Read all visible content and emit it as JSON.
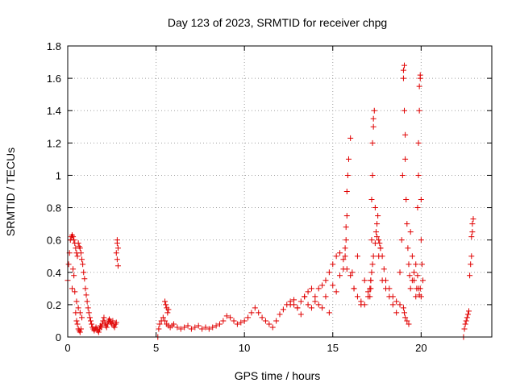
{
  "chart_data": {
    "type": "scatter",
    "title": "Day 123 of 2023, SRMTID for receiver chpg",
    "xlabel": "GPS time / hours",
    "ylabel": "SRMTID / TECUs",
    "xlim": [
      0,
      24
    ],
    "ylim": [
      0,
      1.8
    ],
    "grid": true,
    "marker": "+",
    "color": "#e00000",
    "x_ticks": [
      0,
      5,
      10,
      15,
      20
    ],
    "x_tick_labels": [
      "0",
      "5",
      "10",
      "15",
      "20"
    ],
    "y_ticks": [
      0,
      0.2,
      0.4,
      0.6,
      0.8,
      1.0,
      1.2,
      1.4,
      1.6,
      1.8
    ],
    "y_tick_labels": [
      "0",
      "0.2",
      "0.4",
      "0.6",
      "0.8",
      "1",
      "1.2",
      "1.4",
      "1.6",
      "1.8"
    ],
    "series": [
      {
        "name": "SRMTID",
        "x": [
          0.0,
          0.05,
          0.1,
          0.15,
          0.2,
          0.25,
          0.3,
          0.35,
          0.4,
          0.45,
          0.5,
          0.55,
          0.6,
          0.65,
          0.7,
          0.75,
          0.8,
          0.85,
          0.9,
          0.95,
          1.0,
          1.05,
          1.1,
          1.15,
          1.2,
          1.25,
          1.3,
          1.35,
          1.4,
          1.45,
          1.5,
          1.55,
          1.6,
          1.65,
          1.7,
          1.75,
          1.8,
          1.85,
          1.9,
          1.95,
          2.0,
          2.05,
          2.1,
          2.15,
          2.2,
          2.25,
          2.3,
          2.35,
          2.4,
          2.45,
          2.5,
          2.55,
          2.6,
          2.65,
          2.7,
          2.75,
          2.8,
          2.85,
          0.45,
          0.5,
          0.55,
          0.6,
          0.65,
          0.7,
          0.75,
          0.4,
          0.5,
          0.6,
          0.7,
          0.8,
          0.3,
          0.35,
          0.25,
          2.8,
          2.85,
          2.75,
          2.8,
          5.1,
          5.15,
          5.2,
          5.3,
          5.4,
          5.5,
          5.6,
          5.7,
          5.8,
          5.9,
          6.0,
          6.2,
          6.4,
          6.6,
          6.8,
          7.0,
          7.2,
          7.4,
          7.6,
          7.8,
          8.0,
          8.2,
          8.4,
          8.6,
          8.8,
          9.0,
          9.2,
          9.4,
          9.6,
          9.8,
          10.0,
          10.2,
          10.4,
          10.6,
          10.8,
          11.0,
          11.2,
          11.4,
          11.6,
          11.8,
          12.0,
          12.2,
          12.4,
          12.6,
          12.8,
          13.0,
          13.2,
          13.4,
          13.6,
          13.8,
          14.0,
          14.2,
          14.4,
          14.6,
          14.8,
          15.0,
          15.2,
          15.4,
          15.6,
          15.8,
          16.0,
          16.2,
          16.4,
          16.6,
          16.8,
          17.0,
          17.1,
          17.15,
          17.2,
          17.25,
          17.3,
          17.4,
          17.5,
          17.6,
          17.7,
          17.8,
          17.9,
          18.0,
          18.2,
          18.4,
          18.6,
          18.8,
          19.0,
          19.05,
          19.1,
          19.2,
          19.3,
          19.4,
          19.5,
          19.6,
          19.7,
          19.8,
          19.85,
          19.9,
          19.95,
          20.0,
          5.5,
          5.55,
          5.6,
          5.65,
          5.7,
          12.6,
          12.8,
          13.0,
          13.2,
          13.4,
          13.6,
          13.8,
          14.0,
          14.2,
          14.4,
          14.6,
          14.8,
          15.0,
          15.2,
          15.4,
          15.6,
          15.7,
          15.7,
          15.75,
          15.75,
          15.8,
          15.8,
          15.85,
          15.9,
          16.0,
          16.1,
          16.2,
          16.4,
          16.6,
          16.8,
          17.0,
          17.1,
          17.15,
          17.15,
          17.2,
          17.2,
          17.25,
          17.25,
          17.3,
          17.3,
          17.35,
          17.4,
          17.45,
          17.5,
          17.55,
          17.6,
          17.65,
          17.7,
          17.8,
          18.0,
          18.2,
          18.4,
          18.6,
          18.8,
          18.9,
          18.95,
          19.0,
          19.0,
          19.05,
          19.05,
          19.1,
          19.1,
          19.15,
          19.2,
          19.25,
          19.3,
          19.35,
          19.4,
          19.5,
          19.6,
          19.7,
          19.75,
          19.8,
          19.85,
          19.85,
          19.9,
          19.9,
          19.95,
          19.95,
          20.0,
          20.0,
          20.05,
          20.1,
          22.4,
          22.45,
          22.5,
          22.55,
          22.6,
          22.65,
          22.7,
          22.75,
          22.8,
          22.85,
          22.85,
          22.9,
          22.9,
          22.95
        ],
        "y": [
          0.35,
          0.45,
          0.52,
          0.6,
          0.62,
          0.63,
          0.62,
          0.6,
          0.58,
          0.55,
          0.52,
          0.5,
          0.58,
          0.56,
          0.55,
          0.52,
          0.48,
          0.45,
          0.4,
          0.36,
          0.3,
          0.26,
          0.22,
          0.18,
          0.15,
          0.12,
          0.1,
          0.08,
          0.06,
          0.05,
          0.04,
          0.05,
          0.06,
          0.05,
          0.04,
          0.03,
          0.05,
          0.07,
          0.06,
          0.08,
          0.1,
          0.12,
          0.09,
          0.07,
          0.06,
          0.08,
          0.1,
          0.11,
          0.1,
          0.09,
          0.08,
          0.1,
          0.07,
          0.06,
          0.08,
          0.09,
          0.58,
          0.55,
          0.15,
          0.1,
          0.08,
          0.05,
          0.04,
          0.03,
          0.05,
          0.28,
          0.22,
          0.18,
          0.15,
          0.12,
          0.42,
          0.38,
          0.3,
          0.48,
          0.44,
          0.52,
          0.6,
          0.0,
          0.05,
          0.08,
          0.1,
          0.12,
          0.1,
          0.08,
          0.07,
          0.06,
          0.07,
          0.08,
          0.06,
          0.05,
          0.06,
          0.07,
          0.05,
          0.06,
          0.07,
          0.05,
          0.06,
          0.05,
          0.06,
          0.07,
          0.08,
          0.1,
          0.13,
          0.12,
          0.1,
          0.08,
          0.09,
          0.1,
          0.12,
          0.15,
          0.18,
          0.15,
          0.12,
          0.1,
          0.08,
          0.06,
          0.1,
          0.14,
          0.17,
          0.2,
          0.22,
          0.2,
          0.18,
          0.22,
          0.25,
          0.2,
          0.18,
          0.25,
          0.3,
          0.32,
          0.35,
          0.4,
          0.45,
          0.5,
          0.52,
          0.48,
          0.42,
          0.38,
          0.3,
          0.25,
          0.22,
          0.2,
          0.25,
          0.3,
          0.35,
          0.4,
          0.45,
          0.5,
          0.58,
          0.62,
          0.6,
          0.55,
          0.5,
          0.42,
          0.35,
          0.3,
          0.25,
          0.22,
          0.2,
          0.18,
          0.15,
          0.12,
          0.1,
          0.08,
          0.3,
          0.35,
          0.4,
          0.45,
          0.38,
          0.3,
          0.26,
          0.3,
          0.25,
          0.22,
          0.2,
          0.18,
          0.15,
          0.17,
          0.2,
          0.23,
          0.18,
          0.14,
          0.25,
          0.28,
          0.3,
          0.22,
          0.2,
          0.18,
          0.25,
          0.15,
          0.32,
          0.28,
          0.38,
          0.42,
          0.5,
          0.55,
          0.6,
          0.68,
          0.75,
          0.9,
          1.0,
          1.1,
          1.23,
          0.4,
          0.3,
          0.5,
          0.2,
          0.35,
          0.28,
          0.25,
          0.3,
          0.35,
          0.6,
          0.85,
          1.0,
          1.2,
          1.3,
          1.35,
          1.4,
          0.8,
          0.65,
          0.7,
          0.75,
          0.5,
          0.58,
          0.55,
          0.35,
          0.3,
          0.25,
          0.2,
          0.15,
          0.4,
          0.6,
          1.0,
          1.6,
          1.65,
          1.68,
          1.4,
          1.25,
          1.1,
          0.85,
          0.7,
          0.55,
          0.45,
          0.38,
          0.65,
          0.5,
          0.35,
          0.25,
          0.3,
          0.8,
          1.0,
          1.2,
          1.4,
          1.55,
          1.6,
          1.62,
          0.85,
          0.6,
          0.45,
          0.35,
          0.0,
          0.05,
          0.08,
          0.1,
          0.12,
          0.14,
          0.16,
          0.38,
          0.45,
          0.5,
          0.62,
          0.65,
          0.7,
          0.73
        ]
      }
    ]
  }
}
